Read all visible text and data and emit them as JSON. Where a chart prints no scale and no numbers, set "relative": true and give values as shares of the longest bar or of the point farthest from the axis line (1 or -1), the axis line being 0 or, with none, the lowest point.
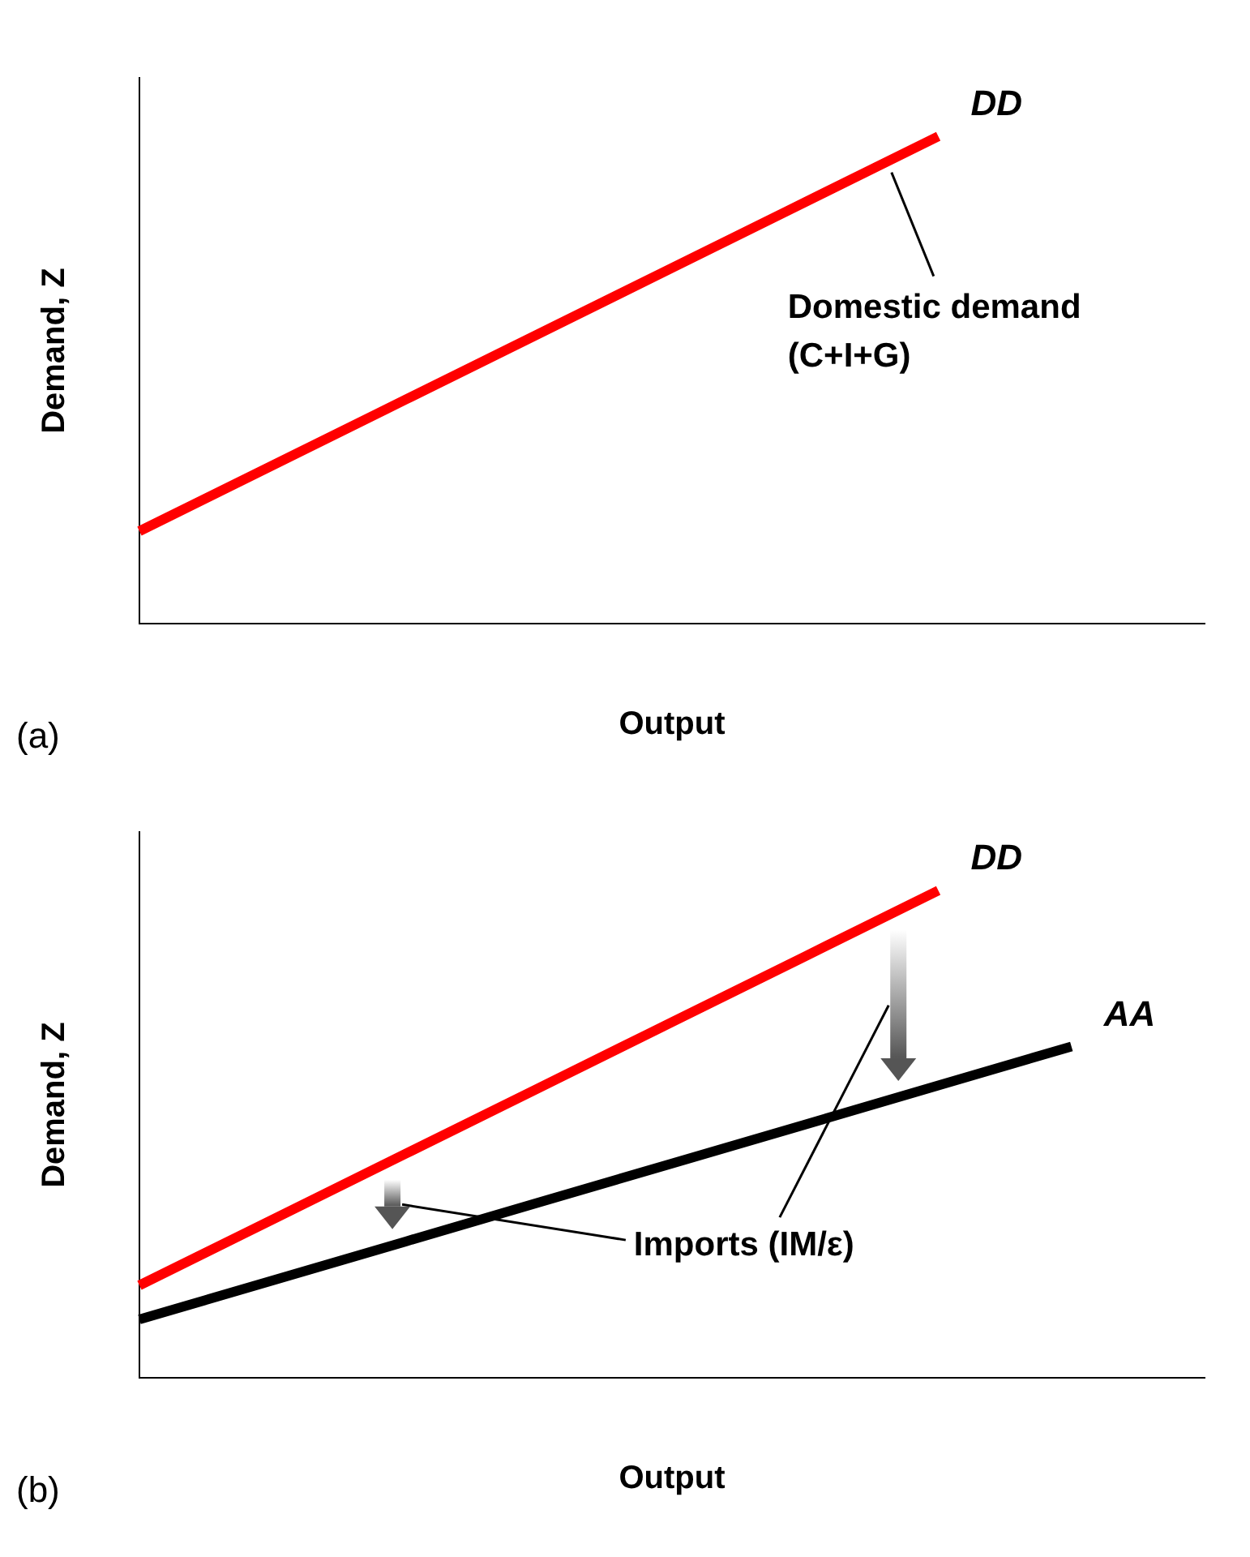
{
  "chart_data": [
    {
      "type": "line",
      "title": "(a)",
      "xlabel": "Output",
      "ylabel": "Demand, Z",
      "relative": true,
      "grid": false,
      "legend": false,
      "marker": "none",
      "categories": [
        null,
        null,
        null,
        null,
        null
      ],
      "series": [
        {
          "name": "DD",
          "color": "#ff0000",
          "values": [
            0.19,
            0.46,
            0.73,
            1.0,
            null
          ]
        }
      ],
      "annotations": [
        "Domestic demand (C+I+G)"
      ]
    },
    {
      "type": "line",
      "title": "(b)",
      "xlabel": "Output",
      "ylabel": "Demand, Z",
      "relative": true,
      "grid": false,
      "legend": false,
      "marker": "none",
      "categories": [
        null,
        null,
        null,
        null,
        null,
        null,
        null,
        null,
        null
      ],
      "series": [
        {
          "name": "DD",
          "color": "#ff0000",
          "values": [
            0.19,
            0.325,
            0.46,
            0.595,
            0.73,
            0.865,
            1.0,
            null,
            null
          ]
        },
        {
          "name": "AA",
          "color": "#000000",
          "values": [
            0.12,
            0.2,
            0.28,
            0.36,
            0.44,
            0.52,
            0.6,
            0.68,
            null
          ]
        }
      ],
      "annotations": [
        "Imports (IM/ε)"
      ]
    }
  ]
}
